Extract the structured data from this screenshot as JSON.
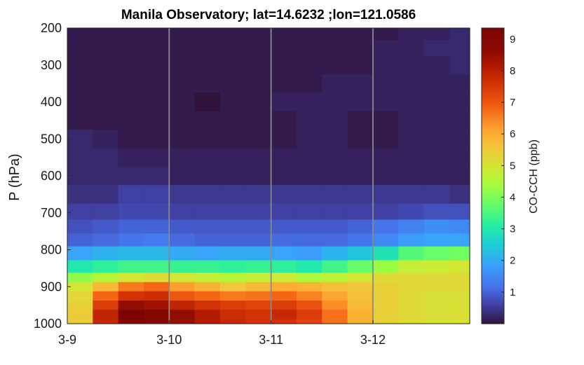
{
  "chart_data": {
    "type": "heatmap",
    "title": "Manila Observatory; lat=14.6232 ;lon=121.0586",
    "xlabel": "",
    "ylabel": "P (hPa)",
    "colorbar_label": "CO-CCH (ppb)",
    "x_ticks": [
      "3-9",
      "3-10",
      "3-11",
      "3-12"
    ],
    "x_range_days": [
      0,
      3.95
    ],
    "y_ticks": [
      200,
      300,
      400,
      500,
      600,
      700,
      800,
      900,
      1000
    ],
    "y_range": [
      200,
      1000
    ],
    "y_reversed": true,
    "colorbar_ticks": [
      1,
      2,
      3,
      4,
      5,
      6,
      7,
      8,
      9
    ],
    "colorbar_range": [
      0,
      9.35
    ],
    "colormap": "turbo",
    "day_dividers": [
      "3-10",
      "3-11",
      "3-12"
    ],
    "levels_hPa": [
      215,
      250,
      300,
      350,
      400,
      450,
      500,
      550,
      600,
      650,
      700,
      737,
      775,
      807,
      850,
      875,
      900,
      925,
      950,
      975,
      1000
    ],
    "time_fraction_of_day": [
      0,
      0.25,
      0.5,
      0.75
    ],
    "values": [
      [
        0.1,
        0.1,
        0.1,
        0.1,
        0.1,
        0.1,
        0.1,
        0.1,
        0.1,
        0.1,
        0.1,
        0.1,
        0.1,
        0.2,
        0.2,
        0.3
      ],
      [
        0.1,
        0.1,
        0.1,
        0.1,
        0.1,
        0.1,
        0.1,
        0.1,
        0.1,
        0.1,
        0.1,
        0.1,
        0.2,
        0.2,
        0.3,
        0.3
      ],
      [
        0.1,
        0.1,
        0.1,
        0.1,
        0.1,
        0.1,
        0.1,
        0.1,
        0.1,
        0.1,
        0.1,
        0.1,
        0.2,
        0.2,
        0.2,
        0.3
      ],
      [
        0.1,
        0.1,
        0.1,
        0.1,
        0.1,
        0.1,
        0.1,
        0.1,
        0.1,
        0.1,
        0.2,
        0.2,
        0.2,
        0.2,
        0.2,
        0.2
      ],
      [
        0.1,
        0.1,
        0.1,
        0.1,
        0.1,
        0.0,
        0.1,
        0.1,
        0.2,
        0.2,
        0.2,
        0.2,
        0.2,
        0.2,
        0.2,
        0.2
      ],
      [
        0.1,
        0.1,
        0.1,
        0.1,
        0.1,
        0.1,
        0.1,
        0.1,
        0.1,
        0.2,
        0.2,
        0.1,
        0.1,
        0.2,
        0.2,
        0.2
      ],
      [
        0.3,
        0.2,
        0.1,
        0.1,
        0.1,
        0.1,
        0.1,
        0.1,
        0.1,
        0.2,
        0.2,
        0.1,
        0.1,
        0.2,
        0.2,
        0.2
      ],
      [
        0.3,
        0.3,
        0.2,
        0.2,
        0.2,
        0.2,
        0.2,
        0.2,
        0.2,
        0.2,
        0.2,
        0.2,
        0.2,
        0.2,
        0.2,
        0.2
      ],
      [
        0.3,
        0.3,
        0.3,
        0.3,
        0.2,
        0.2,
        0.2,
        0.2,
        0.2,
        0.2,
        0.2,
        0.2,
        0.2,
        0.2,
        0.2,
        0.2
      ],
      [
        0.4,
        0.4,
        0.6,
        0.6,
        0.5,
        0.5,
        0.5,
        0.5,
        0.5,
        0.5,
        0.5,
        0.5,
        0.5,
        0.5,
        0.5,
        0.4
      ],
      [
        0.6,
        0.6,
        0.7,
        0.7,
        0.6,
        0.6,
        0.6,
        0.6,
        0.6,
        0.6,
        0.6,
        0.6,
        0.6,
        0.7,
        0.8,
        0.8
      ],
      [
        0.8,
        0.9,
        1.0,
        1.0,
        0.9,
        0.9,
        0.9,
        0.9,
        0.9,
        0.9,
        0.9,
        1.0,
        1.2,
        1.4,
        1.6,
        1.5
      ],
      [
        1.0,
        1.1,
        1.2,
        1.3,
        1.1,
        1.0,
        1.0,
        1.0,
        1.1,
        1.1,
        1.1,
        1.2,
        1.5,
        1.8,
        1.9,
        1.9
      ],
      [
        1.9,
        2.1,
        2.2,
        2.2,
        2.0,
        1.9,
        2.0,
        2.0,
        1.9,
        1.8,
        2.1,
        2.4,
        2.9,
        3.6,
        3.8,
        3.9
      ],
      [
        3.0,
        3.2,
        3.4,
        3.4,
        3.3,
        3.3,
        3.2,
        3.3,
        3.2,
        3.0,
        3.4,
        3.8,
        4.3,
        4.8,
        4.9,
        5.0
      ],
      [
        4.2,
        4.6,
        5.0,
        5.2,
        5.0,
        4.8,
        4.6,
        4.8,
        4.9,
        4.5,
        4.7,
        5.0,
        5.2,
        5.2,
        5.2,
        5.2
      ],
      [
        5.0,
        5.8,
        6.6,
        6.8,
        6.2,
        5.9,
        5.6,
        5.8,
        6.0,
        5.9,
        5.7,
        5.6,
        5.4,
        5.3,
        5.2,
        5.2
      ],
      [
        5.3,
        6.8,
        7.6,
        7.7,
        7.0,
        6.8,
        6.6,
        6.7,
        6.8,
        6.5,
        6.1,
        5.7,
        5.4,
        5.2,
        5.1,
        5.1
      ],
      [
        5.4,
        7.4,
        8.6,
        8.4,
        7.9,
        7.6,
        7.4,
        7.3,
        7.4,
        7.1,
        6.4,
        5.8,
        5.4,
        5.2,
        5.1,
        5.1
      ],
      [
        5.5,
        7.9,
        9.3,
        9.0,
        8.6,
        8.1,
        7.7,
        7.6,
        7.8,
        7.4,
        6.7,
        5.9,
        5.4,
        5.2,
        5.1,
        5.1
      ],
      [
        5.5,
        7.8,
        9.1,
        8.9,
        8.5,
        8.1,
        7.8,
        7.6,
        7.6,
        7.3,
        6.7,
        5.9,
        5.4,
        5.2,
        5.1,
        5.1
      ]
    ]
  }
}
